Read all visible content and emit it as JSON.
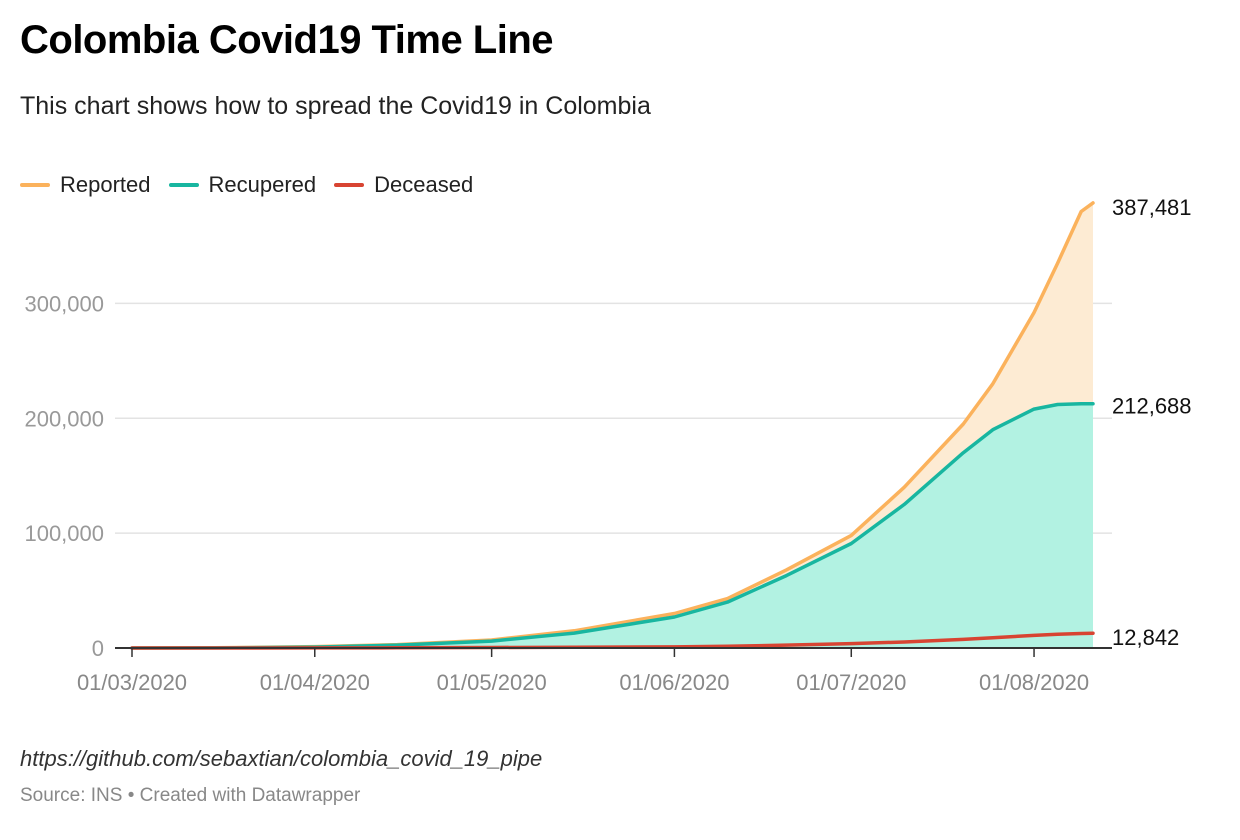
{
  "header": {
    "title": "Colombia Covid19 Time Line",
    "subtitle": "This chart shows how to spread the Covid19 in Colombia"
  },
  "footer": {
    "notes": "https://github.com/sebaxtian/colombia_covid_19_pipe",
    "source": "Source: INS • Created with Datawrapper"
  },
  "chart_data": {
    "type": "area",
    "title": "Colombia Covid19 Time Line",
    "subtitle": "This chart shows how to spread the Covid19 in Colombia",
    "xlabel": "",
    "ylabel": "",
    "x_start": "2020-03-01",
    "x_end": "2020-08-11",
    "ylim": [
      0,
      390000
    ],
    "yticks": [
      0,
      100000,
      200000,
      300000
    ],
    "ytick_labels": [
      "0",
      "100,000",
      "200,000",
      "300,000"
    ],
    "xticks": [
      "2020-03-01",
      "2020-04-01",
      "2020-05-01",
      "2020-06-01",
      "2020-07-01",
      "2020-08-01"
    ],
    "xtick_labels": [
      "01/03/2020",
      "01/04/2020",
      "01/05/2020",
      "01/06/2020",
      "01/07/2020",
      "01/08/2020"
    ],
    "grid": true,
    "legend_position": "top-left",
    "x": [
      "2020-03-01",
      "2020-03-15",
      "2020-04-01",
      "2020-04-15",
      "2020-05-01",
      "2020-05-15",
      "2020-06-01",
      "2020-06-10",
      "2020-06-20",
      "2020-07-01",
      "2020-07-10",
      "2020-07-20",
      "2020-07-25",
      "2020-08-01",
      "2020-08-05",
      "2020-08-09",
      "2020-08-11"
    ],
    "series": [
      {
        "name": "Reported",
        "color": "#fbb25c",
        "fill": "#fdebd3",
        "values": [
          0,
          200,
          1200,
          3000,
          7000,
          15000,
          30000,
          43000,
          68000,
          98000,
          140000,
          195000,
          230000,
          292000,
          335000,
          380000,
          387481
        ],
        "end_label": "387,481"
      },
      {
        "name": "Recupered",
        "color": "#18b6a0",
        "fill": "#b2f2e2",
        "values": [
          0,
          100,
          800,
          2500,
          6000,
          13000,
          27000,
          40000,
          63000,
          91000,
          125000,
          170000,
          190000,
          208000,
          212000,
          212688,
          212688
        ],
        "end_label": "212,688"
      },
      {
        "name": "Deceased",
        "color": "#d84432",
        "fill": "none",
        "values": [
          0,
          5,
          50,
          200,
          400,
          700,
          1000,
          1500,
          2500,
          3800,
          5200,
          7500,
          9000,
          11000,
          12000,
          12600,
          12842
        ],
        "end_label": "12,842"
      }
    ]
  }
}
